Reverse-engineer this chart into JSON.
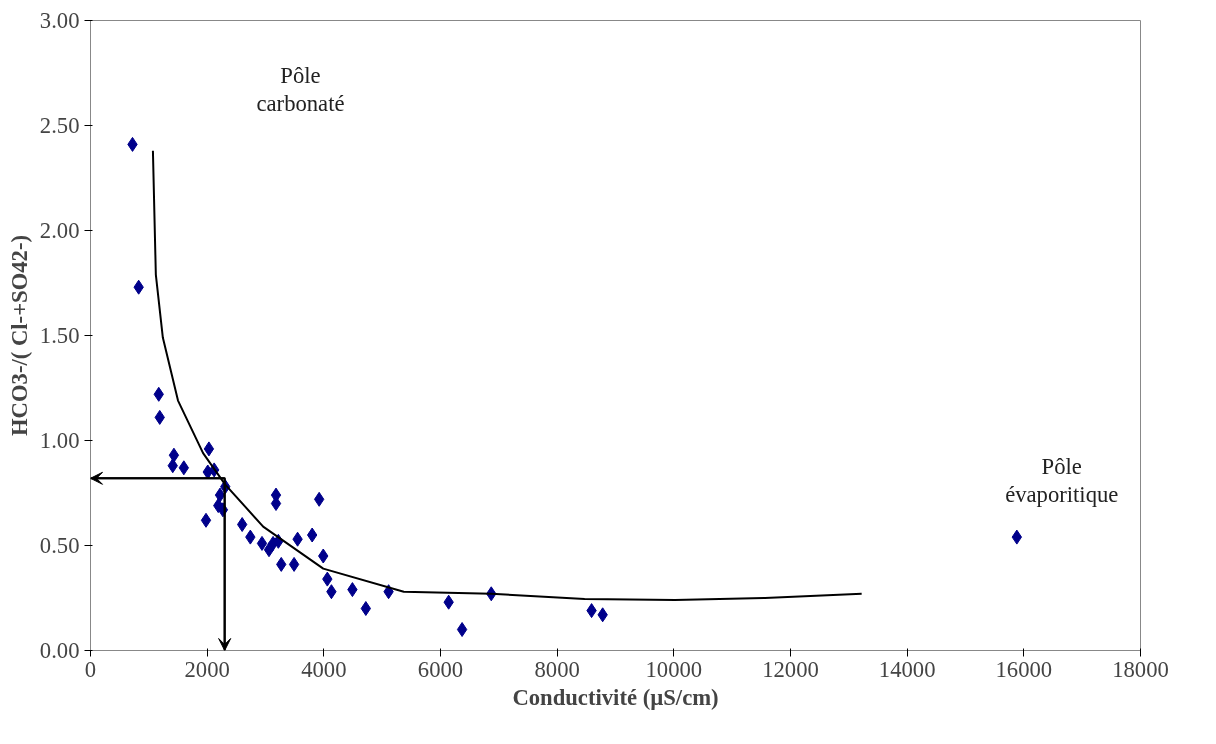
{
  "chart_data": {
    "type": "scatter",
    "xlabel": "Conductivité (µS/cm)",
    "ylabel": "HCO3-/( Cl-+SO42-)",
    "xlim": [
      0,
      18000
    ],
    "xticks": [
      0,
      2000,
      4000,
      6000,
      8000,
      10000,
      12000,
      14000,
      16000,
      18000
    ],
    "ylim": [
      0,
      3
    ],
    "yticks": [
      {
        "value": 0,
        "label": "0.00"
      },
      {
        "value": 0.5,
        "label": "0.50"
      },
      {
        "value": 1,
        "label": "1.00"
      },
      {
        "value": 1.5,
        "label": "1.50"
      },
      {
        "value": 2,
        "label": "2.00"
      },
      {
        "value": 2.5,
        "label": "2.50"
      },
      {
        "value": 3,
        "label": "3.00"
      }
    ],
    "grid": false,
    "series": [
      {
        "marker": "diamond",
        "color": "#00008b",
        "x": [
          720,
          826,
          1170,
          1187,
          1430,
          1410,
          1600,
          2030,
          2010,
          2120,
          1980,
          2190,
          2220,
          2310,
          2270,
          2600,
          2740,
          2940,
          3060,
          3130,
          3180,
          3180,
          3220,
          3270,
          3550,
          3490,
          3800,
          3920,
          3990,
          4060,
          4130,
          4490,
          4720,
          5110,
          6140,
          6370,
          6870,
          8590,
          8780,
          15880
        ],
        "values": [
          2.41,
          1.73,
          1.22,
          1.11,
          0.93,
          0.88,
          0.87,
          0.96,
          0.85,
          0.86,
          0.62,
          0.69,
          0.74,
          0.78,
          0.67,
          0.6,
          0.54,
          0.51,
          0.48,
          0.51,
          0.74,
          0.7,
          0.52,
          0.41,
          0.53,
          0.41,
          0.55,
          0.72,
          0.45,
          0.34,
          0.28,
          0.29,
          0.2,
          0.28,
          0.23,
          0.1,
          0.27,
          0.19,
          0.17,
          0.54
        ]
      },
      {
        "type": "line",
        "marker": "none",
        "color": "#000000",
        "line_style": "solid",
        "x": [
          1070,
          1120,
          1240,
          1500,
          1930,
          2310,
          2960,
          3990,
          5370,
          6870,
          8470,
          10020,
          11560,
          13220
        ],
        "values": [
          2.38,
          1.79,
          1.49,
          1.19,
          0.94,
          0.79,
          0.59,
          0.39,
          0.28,
          0.27,
          0.245,
          0.24,
          0.25,
          0.27
        ]
      },
      {
        "type": "line",
        "color": "#000000",
        "line_style": "solid",
        "marker": "none",
        "x": [
          0,
          2300,
          2300
        ],
        "values": [
          0.82,
          0.82,
          0
        ]
      }
    ],
    "annotations": [
      "Pôle\ncarbonaté",
      "Pôle\névaporitique"
    ]
  }
}
